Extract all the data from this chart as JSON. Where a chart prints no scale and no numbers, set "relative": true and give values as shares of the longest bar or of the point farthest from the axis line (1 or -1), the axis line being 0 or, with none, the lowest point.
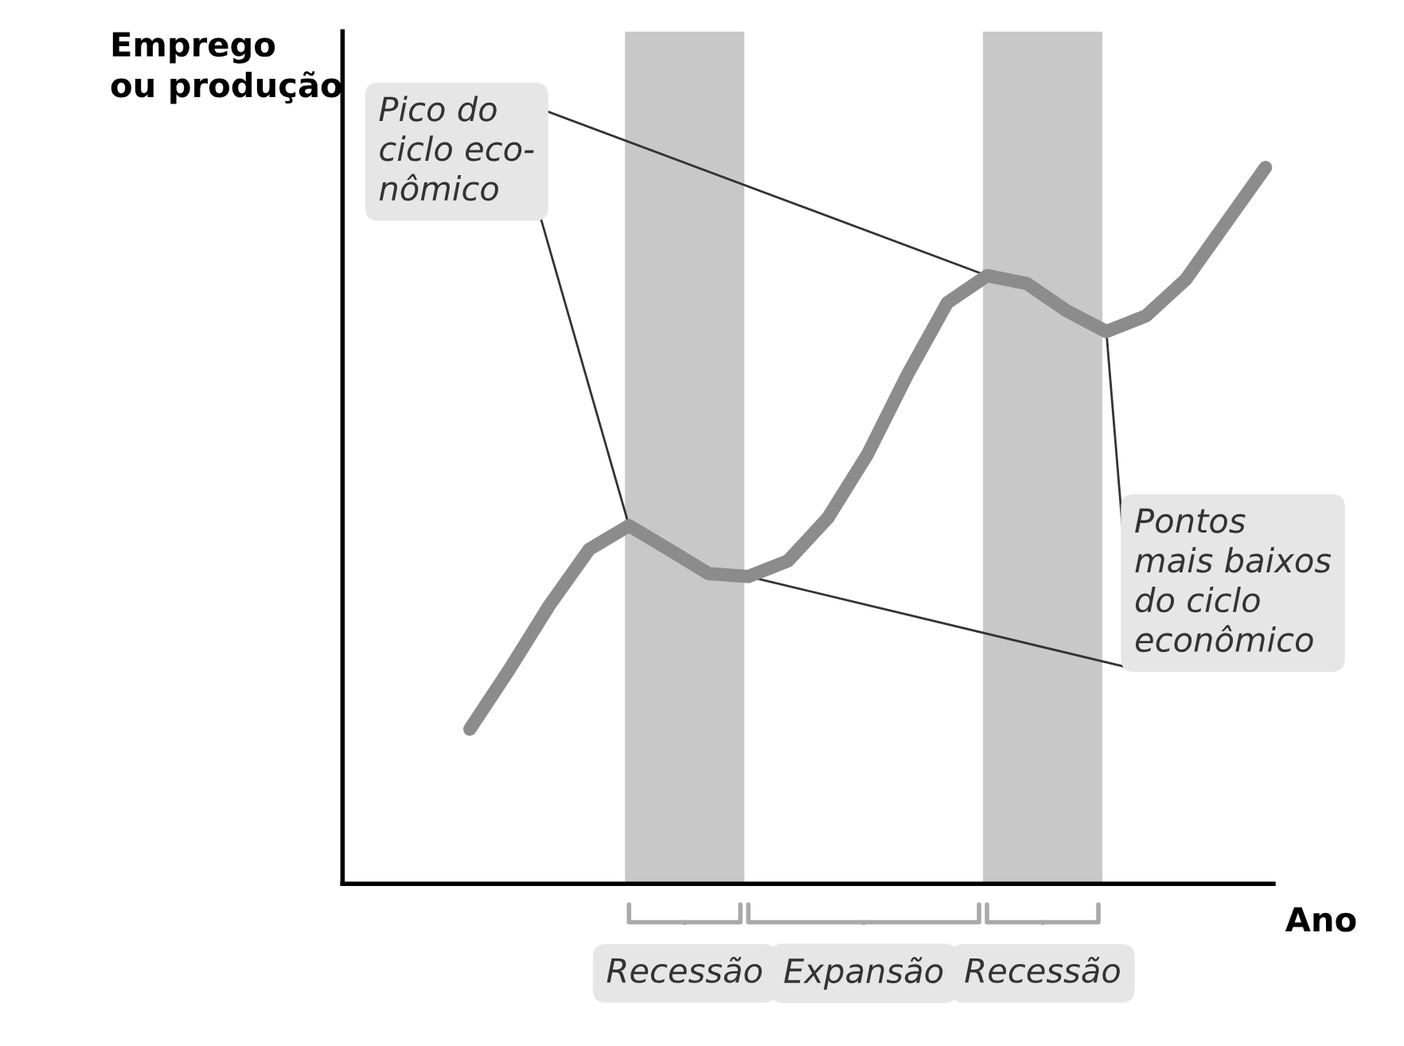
{
  "chart_data": {
    "type": "line",
    "relative": true,
    "xlabel": "Ano",
    "ylabel": "Emprego\nou produção",
    "categories": [
      null,
      null,
      null,
      null,
      null,
      null,
      null,
      null,
      null,
      null,
      null,
      null,
      null,
      null,
      null,
      null,
      null,
      null,
      null,
      null,
      null
    ],
    "series": [
      {
        "color": "#8c8c8c",
        "values": [
          0.216,
          0.3,
          0.389,
          0.467,
          0.5,
          0.467,
          0.433,
          0.429,
          0.451,
          0.511,
          0.6,
          0.711,
          0.811,
          0.849,
          0.838,
          0.8,
          0.771,
          0.793,
          0.844,
          0.922,
          1.0
        ]
      }
    ],
    "annotations": [
      "Pico do\nciclo eco-\nnômico",
      "Pontos\nmais baixos\ndo ciclo\neconômico",
      "Recessão",
      "Expansão",
      "Recessão"
    ],
    "marker": "none",
    "line_style": "solid"
  }
}
